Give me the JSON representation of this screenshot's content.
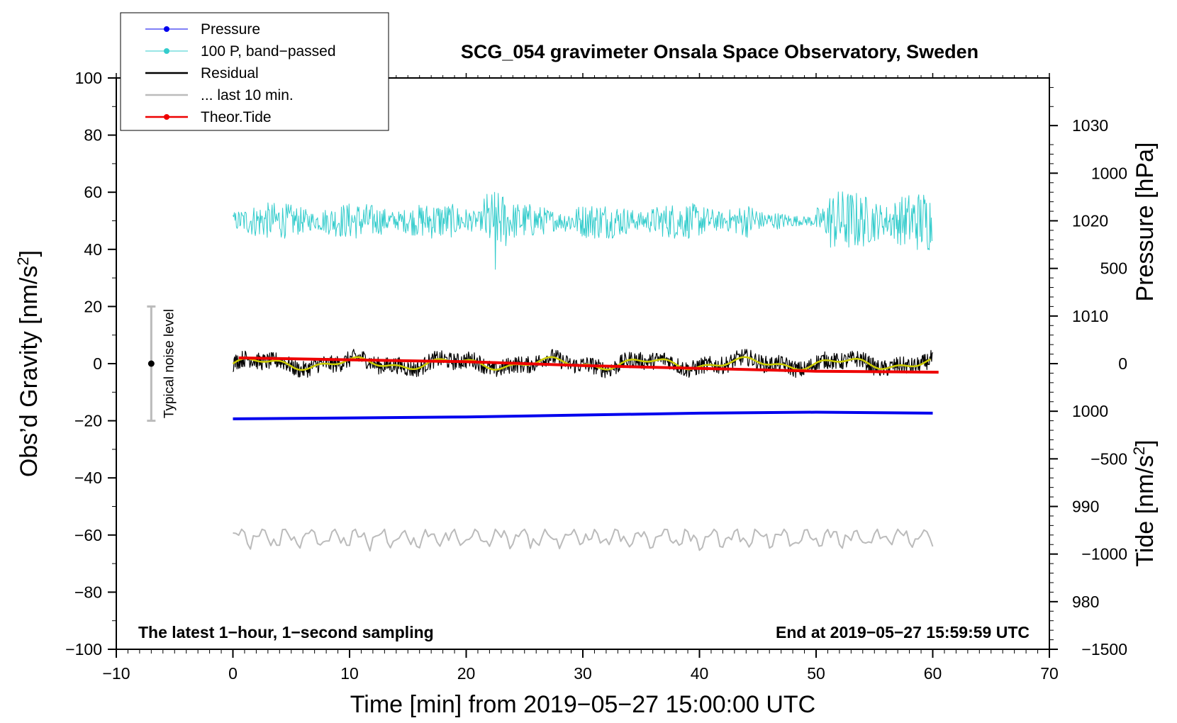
{
  "chart_data": {
    "type": "line",
    "title": "SCG_054 gravimeter Onsala Space Observatory, Sweden",
    "xlabel": "Time [min] from 2019−05−27 15:00:00 UTC",
    "ylabel_left_prefix": "Obs’d Gravity [nm/s",
    "ylabel_left_sup": "2",
    "ylabel_left_suffix": "]",
    "ylabel_pressure": "Pressure [hPa]",
    "ylabel_tide_prefix": "Tide [nm/s",
    "ylabel_tide_sup": "2",
    "ylabel_tide_suffix": "]",
    "xlim": [
      -10,
      70
    ],
    "ylim_gravity": [
      -100,
      100
    ],
    "ylim_pressure": [
      975,
      1035
    ],
    "ylim_tide": [
      -1500,
      1500
    ],
    "x_ticks": [
      -10,
      0,
      10,
      20,
      30,
      40,
      50,
      60,
      70
    ],
    "x_tick_labels": [
      "−10",
      "0",
      "10",
      "20",
      "30",
      "40",
      "50",
      "60",
      "70"
    ],
    "y_ticks": [
      -100,
      -80,
      -60,
      -40,
      -20,
      0,
      20,
      40,
      60,
      80,
      100
    ],
    "y_tick_labels": [
      "−100",
      "−80",
      "−60",
      "−40",
      "−20",
      "0",
      "20",
      "40",
      "60",
      "80",
      "100"
    ],
    "pressure_ticks": [
      980,
      990,
      1000,
      1010,
      1020,
      1030
    ],
    "pressure_tick_labels": [
      "980",
      "990",
      "1000",
      "1010",
      "1020",
      "1030"
    ],
    "tide_ticks": [
      -1500,
      -1000,
      -500,
      0,
      500,
      1000
    ],
    "tide_tick_labels": [
      "−1500",
      "−1000",
      "−500",
      "0",
      "500",
      "1000"
    ],
    "legend": [
      {
        "label": "Pressure",
        "color": "#0000ee",
        "marker": true
      },
      {
        "label": "100 P, band−passed",
        "color": "#33cccc",
        "marker": true
      },
      {
        "label": "Residual",
        "color": "#000000",
        "marker": false
      },
      {
        "label": "... last 10 min.",
        "color": "#bbbbbb",
        "marker": false
      },
      {
        "label": "Theor.Tide",
        "color": "#ee0000",
        "marker": true
      }
    ],
    "legend_position": "top-left",
    "annotation_left": "The latest 1−hour, 1−second sampling",
    "annotation_right": "End at 2019−05−27 15:59:59 UTC",
    "noise_label": "Typical noise level",
    "noise_level": {
      "x": -7,
      "center": 0,
      "low": -20,
      "high": 20
    },
    "series": [
      {
        "name": "Pressure",
        "axis": "pressure",
        "color": "#0000ee",
        "x": [
          0,
          10,
          20,
          30,
          40,
          50,
          60
        ],
        "values": [
          999.2,
          999.3,
          999.4,
          999.6,
          999.8,
          999.9,
          999.8
        ]
      },
      {
        "name": "100 P, band-passed",
        "axis": "gravity",
        "color": "#33cccc",
        "x_range": [
          0,
          60
        ],
        "mean": 50,
        "amplitude_max": 18,
        "amplitude_note": "noisy, largest burst near 22.5 min (33 to 60)"
      },
      {
        "name": "Residual",
        "axis": "gravity",
        "color": "#000000",
        "x_range": [
          0,
          60
        ],
        "mean": 0,
        "range": [
          -5,
          5
        ]
      },
      {
        "name": "Residual smoothed",
        "axis": "gravity",
        "color": "#cccc00",
        "x_range": [
          0,
          60
        ],
        "mean": 0,
        "range": [
          -2,
          3
        ]
      },
      {
        "name": "... last 10 min.",
        "axis": "gravity",
        "color": "#bbbbbb",
        "x_range": [
          0,
          60
        ],
        "mean": -61,
        "range": [
          -67,
          -58
        ]
      },
      {
        "name": "Theor.Tide",
        "axis": "tide",
        "color": "#ee0000",
        "x": [
          0.5,
          10,
          20,
          30,
          40,
          50,
          60.5
        ],
        "values": [
          30,
          20,
          10,
          -10,
          -25,
          -40,
          -45
        ]
      }
    ]
  }
}
